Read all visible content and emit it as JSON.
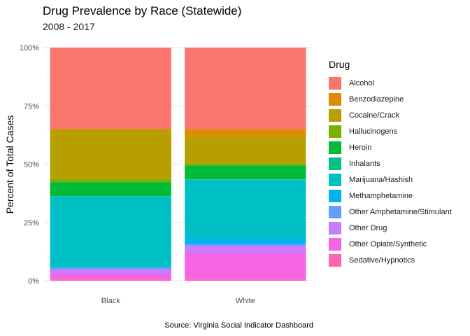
{
  "chart_data": {
    "type": "bar",
    "stacked": true,
    "normalized": true,
    "title": "Drug Prevalence by Race (Statewide)",
    "subtitle": "2008 - 2017",
    "xlabel": "",
    "ylabel": "Percent of Total Cases",
    "caption": "Source: Virginia Social Indicator Dashboard",
    "ylim": [
      0,
      100
    ],
    "yticks": [
      "0%",
      "25%",
      "50%",
      "75%",
      "100%"
    ],
    "categories": [
      "Black",
      "White"
    ],
    "legend_title": "Drug",
    "legend_position": "right",
    "grid": true,
    "series": [
      {
        "name": "Alcohol",
        "color": "#F8766D",
        "values": [
          35,
          35
        ]
      },
      {
        "name": "Benzodiazepine",
        "color": "#DE8C00",
        "values": [
          0.5,
          3
        ]
      },
      {
        "name": "Cocaine/Crack",
        "color": "#B79F00",
        "values": [
          21,
          12
        ]
      },
      {
        "name": "Hallucinogens",
        "color": "#7CAE00",
        "values": [
          1.5,
          0.5
        ]
      },
      {
        "name": "Heroin",
        "color": "#00BA38",
        "values": [
          6,
          6
        ]
      },
      {
        "name": "Inhalants",
        "color": "#00C08B",
        "values": [
          0.2,
          0.2
        ]
      },
      {
        "name": "Marijuana/Hashish",
        "color": "#00BFC4",
        "values": [
          30.5,
          25
        ]
      },
      {
        "name": "Methamphetamine",
        "color": "#00B4F0",
        "values": [
          0.3,
          2.5
        ]
      },
      {
        "name": "Other Amphetamine/Stimulant",
        "color": "#619CFF",
        "values": [
          0.5,
          0.8
        ]
      },
      {
        "name": "Other Drug",
        "color": "#C77CFF",
        "values": [
          2,
          3
        ]
      },
      {
        "name": "Other Opiate/Synthetic",
        "color": "#F564E3",
        "values": [
          2.5,
          11.5
        ]
      },
      {
        "name": "Sedative/Hypnotics",
        "color": "#FF64B0",
        "values": [
          0.5,
          0.5
        ]
      }
    ]
  }
}
